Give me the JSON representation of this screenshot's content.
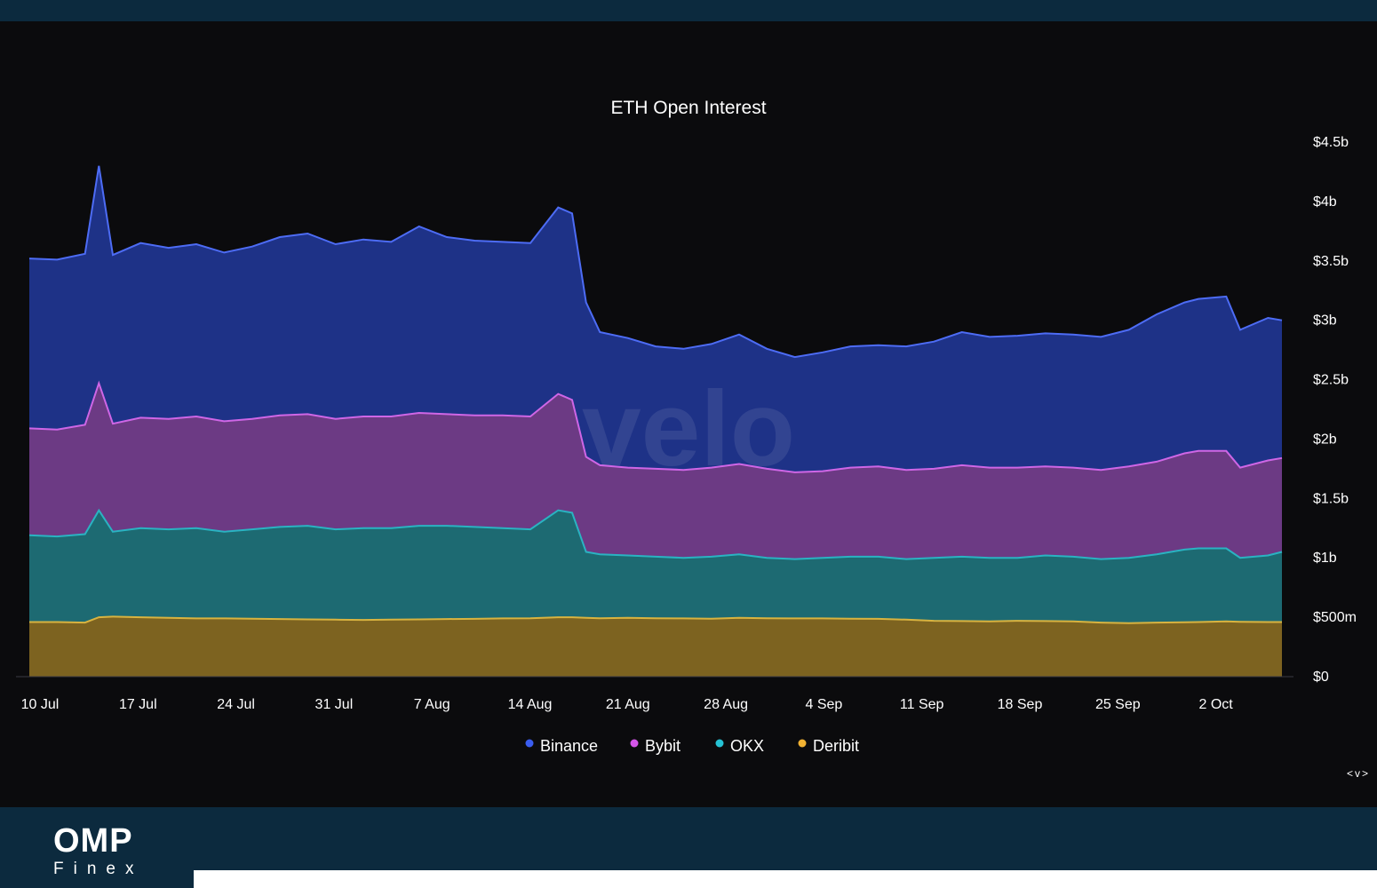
{
  "brand": {
    "name": "OMP",
    "sub": "Finex"
  },
  "controls": {
    "nav_label": "<v>"
  },
  "chart_data": {
    "type": "area",
    "stacked": true,
    "title": "ETH Open Interest",
    "watermark": "velo",
    "xlabel": "",
    "ylabel": "",
    "y_unit": "USD",
    "ylim": [
      0,
      4500000000
    ],
    "y_ticks": [
      0,
      500000000,
      1000000000,
      1500000000,
      2000000000,
      2500000000,
      3000000000,
      3500000000,
      4000000000,
      4500000000
    ],
    "y_tick_labels": [
      "$0",
      "$500m",
      "$1b",
      "$1.5b",
      "$2b",
      "$2.5b",
      "$3b",
      "$3.5b",
      "$4b",
      "$4.5b"
    ],
    "x_ticks": [
      "10 Jul",
      "17 Jul",
      "24 Jul",
      "31 Jul",
      "7 Aug",
      "14 Aug",
      "21 Aug",
      "28 Aug",
      "4 Sep",
      "11 Sep",
      "18 Sep",
      "25 Sep",
      "2 Oct"
    ],
    "x_range": [
      "2023-07-10",
      "2023-10-08"
    ],
    "grid": false,
    "legend_position": "bottom-center",
    "colors": {
      "background": "#0b0b0d",
      "axis": "#3a3a42",
      "text": "#ffffff"
    },
    "series_order_bottom_to_top": [
      "Deribit",
      "OKX",
      "Bybit",
      "Binance"
    ],
    "series": [
      {
        "name": "Binance",
        "marker_color": "#3a5df0",
        "fill": "#1e3287",
        "line": "#4d6cf5",
        "cumulative_top": [
          {
            "x": "2023-07-10",
            "y": 3520000000
          },
          {
            "x": "2023-07-12",
            "y": 3510000000
          },
          {
            "x": "2023-07-14",
            "y": 3560000000
          },
          {
            "x": "2023-07-15",
            "y": 4300000000
          },
          {
            "x": "2023-07-16",
            "y": 3550000000
          },
          {
            "x": "2023-07-18",
            "y": 3650000000
          },
          {
            "x": "2023-07-20",
            "y": 3610000000
          },
          {
            "x": "2023-07-22",
            "y": 3640000000
          },
          {
            "x": "2023-07-24",
            "y": 3570000000
          },
          {
            "x": "2023-07-26",
            "y": 3620000000
          },
          {
            "x": "2023-07-28",
            "y": 3700000000
          },
          {
            "x": "2023-07-30",
            "y": 3730000000
          },
          {
            "x": "2023-08-01",
            "y": 3640000000
          },
          {
            "x": "2023-08-03",
            "y": 3680000000
          },
          {
            "x": "2023-08-05",
            "y": 3660000000
          },
          {
            "x": "2023-08-07",
            "y": 3790000000
          },
          {
            "x": "2023-08-09",
            "y": 3700000000
          },
          {
            "x": "2023-08-11",
            "y": 3670000000
          },
          {
            "x": "2023-08-13",
            "y": 3660000000
          },
          {
            "x": "2023-08-15",
            "y": 3650000000
          },
          {
            "x": "2023-08-17",
            "y": 3950000000
          },
          {
            "x": "2023-08-18",
            "y": 3900000000
          },
          {
            "x": "2023-08-19",
            "y": 3150000000
          },
          {
            "x": "2023-08-20",
            "y": 2900000000
          },
          {
            "x": "2023-08-22",
            "y": 2850000000
          },
          {
            "x": "2023-08-24",
            "y": 2780000000
          },
          {
            "x": "2023-08-26",
            "y": 2760000000
          },
          {
            "x": "2023-08-28",
            "y": 2800000000
          },
          {
            "x": "2023-08-30",
            "y": 2880000000
          },
          {
            "x": "2023-09-01",
            "y": 2760000000
          },
          {
            "x": "2023-09-03",
            "y": 2690000000
          },
          {
            "x": "2023-09-05",
            "y": 2730000000
          },
          {
            "x": "2023-09-07",
            "y": 2780000000
          },
          {
            "x": "2023-09-09",
            "y": 2790000000
          },
          {
            "x": "2023-09-11",
            "y": 2780000000
          },
          {
            "x": "2023-09-13",
            "y": 2820000000
          },
          {
            "x": "2023-09-15",
            "y": 2900000000
          },
          {
            "x": "2023-09-17",
            "y": 2860000000
          },
          {
            "x": "2023-09-19",
            "y": 2870000000
          },
          {
            "x": "2023-09-21",
            "y": 2890000000
          },
          {
            "x": "2023-09-23",
            "y": 2880000000
          },
          {
            "x": "2023-09-25",
            "y": 2860000000
          },
          {
            "x": "2023-09-27",
            "y": 2920000000
          },
          {
            "x": "2023-09-29",
            "y": 3050000000
          },
          {
            "x": "2023-10-01",
            "y": 3150000000
          },
          {
            "x": "2023-10-02",
            "y": 3180000000
          },
          {
            "x": "2023-10-04",
            "y": 3200000000
          },
          {
            "x": "2023-10-05",
            "y": 2920000000
          },
          {
            "x": "2023-10-07",
            "y": 3020000000
          },
          {
            "x": "2023-10-08",
            "y": 3000000000
          }
        ]
      },
      {
        "name": "Bybit",
        "marker_color": "#d455e8",
        "fill": "#6c3a84",
        "line": "#cf66e6",
        "cumulative_top": [
          {
            "x": "2023-07-10",
            "y": 2090000000
          },
          {
            "x": "2023-07-12",
            "y": 2080000000
          },
          {
            "x": "2023-07-14",
            "y": 2120000000
          },
          {
            "x": "2023-07-15",
            "y": 2470000000
          },
          {
            "x": "2023-07-16",
            "y": 2130000000
          },
          {
            "x": "2023-07-18",
            "y": 2180000000
          },
          {
            "x": "2023-07-20",
            "y": 2170000000
          },
          {
            "x": "2023-07-22",
            "y": 2190000000
          },
          {
            "x": "2023-07-24",
            "y": 2150000000
          },
          {
            "x": "2023-07-26",
            "y": 2170000000
          },
          {
            "x": "2023-07-28",
            "y": 2200000000
          },
          {
            "x": "2023-07-30",
            "y": 2210000000
          },
          {
            "x": "2023-08-01",
            "y": 2170000000
          },
          {
            "x": "2023-08-03",
            "y": 2190000000
          },
          {
            "x": "2023-08-05",
            "y": 2190000000
          },
          {
            "x": "2023-08-07",
            "y": 2220000000
          },
          {
            "x": "2023-08-09",
            "y": 2210000000
          },
          {
            "x": "2023-08-11",
            "y": 2200000000
          },
          {
            "x": "2023-08-13",
            "y": 2200000000
          },
          {
            "x": "2023-08-15",
            "y": 2190000000
          },
          {
            "x": "2023-08-17",
            "y": 2380000000
          },
          {
            "x": "2023-08-18",
            "y": 2330000000
          },
          {
            "x": "2023-08-19",
            "y": 1850000000
          },
          {
            "x": "2023-08-20",
            "y": 1780000000
          },
          {
            "x": "2023-08-22",
            "y": 1760000000
          },
          {
            "x": "2023-08-24",
            "y": 1750000000
          },
          {
            "x": "2023-08-26",
            "y": 1740000000
          },
          {
            "x": "2023-08-28",
            "y": 1760000000
          },
          {
            "x": "2023-08-30",
            "y": 1790000000
          },
          {
            "x": "2023-09-01",
            "y": 1750000000
          },
          {
            "x": "2023-09-03",
            "y": 1720000000
          },
          {
            "x": "2023-09-05",
            "y": 1730000000
          },
          {
            "x": "2023-09-07",
            "y": 1760000000
          },
          {
            "x": "2023-09-09",
            "y": 1770000000
          },
          {
            "x": "2023-09-11",
            "y": 1740000000
          },
          {
            "x": "2023-09-13",
            "y": 1750000000
          },
          {
            "x": "2023-09-15",
            "y": 1780000000
          },
          {
            "x": "2023-09-17",
            "y": 1760000000
          },
          {
            "x": "2023-09-19",
            "y": 1760000000
          },
          {
            "x": "2023-09-21",
            "y": 1770000000
          },
          {
            "x": "2023-09-23",
            "y": 1760000000
          },
          {
            "x": "2023-09-25",
            "y": 1740000000
          },
          {
            "x": "2023-09-27",
            "y": 1770000000
          },
          {
            "x": "2023-09-29",
            "y": 1810000000
          },
          {
            "x": "2023-10-01",
            "y": 1880000000
          },
          {
            "x": "2023-10-02",
            "y": 1900000000
          },
          {
            "x": "2023-10-04",
            "y": 1900000000
          },
          {
            "x": "2023-10-05",
            "y": 1760000000
          },
          {
            "x": "2023-10-07",
            "y": 1820000000
          },
          {
            "x": "2023-10-08",
            "y": 1840000000
          }
        ]
      },
      {
        "name": "OKX",
        "marker_color": "#25c2d4",
        "fill": "#1d6a72",
        "line": "#2ab3c2",
        "cumulative_top": [
          {
            "x": "2023-07-10",
            "y": 1190000000
          },
          {
            "x": "2023-07-12",
            "y": 1180000000
          },
          {
            "x": "2023-07-14",
            "y": 1200000000
          },
          {
            "x": "2023-07-15",
            "y": 1400000000
          },
          {
            "x": "2023-07-16",
            "y": 1220000000
          },
          {
            "x": "2023-07-18",
            "y": 1250000000
          },
          {
            "x": "2023-07-20",
            "y": 1240000000
          },
          {
            "x": "2023-07-22",
            "y": 1250000000
          },
          {
            "x": "2023-07-24",
            "y": 1220000000
          },
          {
            "x": "2023-07-26",
            "y": 1240000000
          },
          {
            "x": "2023-07-28",
            "y": 1260000000
          },
          {
            "x": "2023-07-30",
            "y": 1270000000
          },
          {
            "x": "2023-08-01",
            "y": 1240000000
          },
          {
            "x": "2023-08-03",
            "y": 1250000000
          },
          {
            "x": "2023-08-05",
            "y": 1250000000
          },
          {
            "x": "2023-08-07",
            "y": 1270000000
          },
          {
            "x": "2023-08-09",
            "y": 1270000000
          },
          {
            "x": "2023-08-11",
            "y": 1260000000
          },
          {
            "x": "2023-08-13",
            "y": 1250000000
          },
          {
            "x": "2023-08-15",
            "y": 1240000000
          },
          {
            "x": "2023-08-17",
            "y": 1400000000
          },
          {
            "x": "2023-08-18",
            "y": 1380000000
          },
          {
            "x": "2023-08-19",
            "y": 1050000000
          },
          {
            "x": "2023-08-20",
            "y": 1030000000
          },
          {
            "x": "2023-08-22",
            "y": 1020000000
          },
          {
            "x": "2023-08-24",
            "y": 1010000000
          },
          {
            "x": "2023-08-26",
            "y": 1000000000
          },
          {
            "x": "2023-08-28",
            "y": 1010000000
          },
          {
            "x": "2023-08-30",
            "y": 1030000000
          },
          {
            "x": "2023-09-01",
            "y": 1000000000
          },
          {
            "x": "2023-09-03",
            "y": 990000000
          },
          {
            "x": "2023-09-05",
            "y": 1000000000
          },
          {
            "x": "2023-09-07",
            "y": 1010000000
          },
          {
            "x": "2023-09-09",
            "y": 1010000000
          },
          {
            "x": "2023-09-11",
            "y": 990000000
          },
          {
            "x": "2023-09-13",
            "y": 1000000000
          },
          {
            "x": "2023-09-15",
            "y": 1010000000
          },
          {
            "x": "2023-09-17",
            "y": 1000000000
          },
          {
            "x": "2023-09-19",
            "y": 1000000000
          },
          {
            "x": "2023-09-21",
            "y": 1020000000
          },
          {
            "x": "2023-09-23",
            "y": 1010000000
          },
          {
            "x": "2023-09-25",
            "y": 990000000
          },
          {
            "x": "2023-09-27",
            "y": 1000000000
          },
          {
            "x": "2023-09-29",
            "y": 1030000000
          },
          {
            "x": "2023-10-01",
            "y": 1070000000
          },
          {
            "x": "2023-10-02",
            "y": 1080000000
          },
          {
            "x": "2023-10-04",
            "y": 1080000000
          },
          {
            "x": "2023-10-05",
            "y": 1000000000
          },
          {
            "x": "2023-10-07",
            "y": 1020000000
          },
          {
            "x": "2023-10-08",
            "y": 1050000000
          }
        ]
      },
      {
        "name": "Deribit",
        "marker_color": "#f2b232",
        "fill": "#7d6320",
        "line": "#d8b340",
        "cumulative_top": [
          {
            "x": "2023-07-10",
            "y": 460000000
          },
          {
            "x": "2023-07-12",
            "y": 460000000
          },
          {
            "x": "2023-07-14",
            "y": 455000000
          },
          {
            "x": "2023-07-15",
            "y": 500000000
          },
          {
            "x": "2023-07-16",
            "y": 505000000
          },
          {
            "x": "2023-07-18",
            "y": 500000000
          },
          {
            "x": "2023-07-20",
            "y": 495000000
          },
          {
            "x": "2023-07-22",
            "y": 490000000
          },
          {
            "x": "2023-07-24",
            "y": 490000000
          },
          {
            "x": "2023-07-26",
            "y": 488000000
          },
          {
            "x": "2023-07-28",
            "y": 485000000
          },
          {
            "x": "2023-07-30",
            "y": 482000000
          },
          {
            "x": "2023-08-01",
            "y": 480000000
          },
          {
            "x": "2023-08-03",
            "y": 478000000
          },
          {
            "x": "2023-08-05",
            "y": 480000000
          },
          {
            "x": "2023-08-07",
            "y": 482000000
          },
          {
            "x": "2023-08-09",
            "y": 485000000
          },
          {
            "x": "2023-08-11",
            "y": 487000000
          },
          {
            "x": "2023-08-13",
            "y": 490000000
          },
          {
            "x": "2023-08-15",
            "y": 492000000
          },
          {
            "x": "2023-08-17",
            "y": 500000000
          },
          {
            "x": "2023-08-18",
            "y": 500000000
          },
          {
            "x": "2023-08-19",
            "y": 495000000
          },
          {
            "x": "2023-08-20",
            "y": 492000000
          },
          {
            "x": "2023-08-22",
            "y": 495000000
          },
          {
            "x": "2023-08-24",
            "y": 492000000
          },
          {
            "x": "2023-08-26",
            "y": 490000000
          },
          {
            "x": "2023-08-28",
            "y": 488000000
          },
          {
            "x": "2023-08-30",
            "y": 495000000
          },
          {
            "x": "2023-09-01",
            "y": 492000000
          },
          {
            "x": "2023-09-03",
            "y": 490000000
          },
          {
            "x": "2023-09-05",
            "y": 490000000
          },
          {
            "x": "2023-09-07",
            "y": 488000000
          },
          {
            "x": "2023-09-09",
            "y": 487000000
          },
          {
            "x": "2023-09-11",
            "y": 480000000
          },
          {
            "x": "2023-09-13",
            "y": 470000000
          },
          {
            "x": "2023-09-15",
            "y": 468000000
          },
          {
            "x": "2023-09-17",
            "y": 466000000
          },
          {
            "x": "2023-09-19",
            "y": 470000000
          },
          {
            "x": "2023-09-21",
            "y": 468000000
          },
          {
            "x": "2023-09-23",
            "y": 465000000
          },
          {
            "x": "2023-09-25",
            "y": 455000000
          },
          {
            "x": "2023-09-27",
            "y": 450000000
          },
          {
            "x": "2023-09-29",
            "y": 455000000
          },
          {
            "x": "2023-10-01",
            "y": 458000000
          },
          {
            "x": "2023-10-02",
            "y": 460000000
          },
          {
            "x": "2023-10-04",
            "y": 465000000
          },
          {
            "x": "2023-10-05",
            "y": 462000000
          },
          {
            "x": "2023-10-07",
            "y": 460000000
          },
          {
            "x": "2023-10-08",
            "y": 460000000
          }
        ]
      }
    ]
  }
}
